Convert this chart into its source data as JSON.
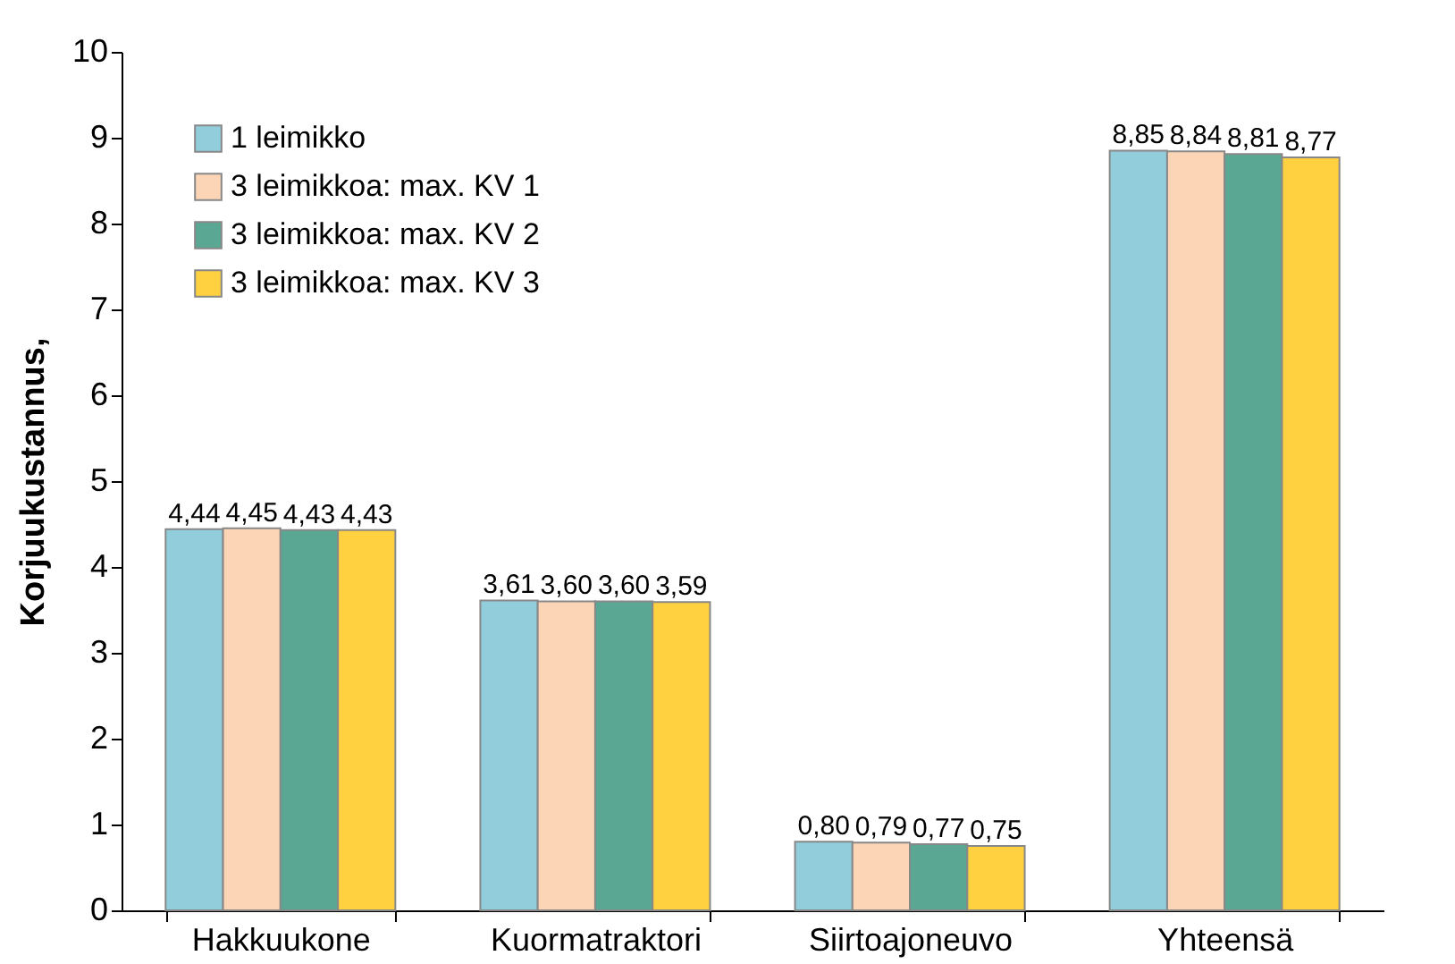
{
  "chart_data": {
    "type": "bar",
    "ylabel": "Korjuukustannus,",
    "categories": [
      "Hakkuukone",
      "Kuormatraktori",
      "Siirtoajoneuvo",
      "Yhteensä"
    ],
    "series": [
      {
        "name": "1 leimikko",
        "color": "#92cddc",
        "values": [
          4.44,
          3.61,
          0.8,
          8.85
        ],
        "value_labels": [
          "4,44",
          "3,61",
          "0,80",
          "8,85"
        ]
      },
      {
        "name": "3 leimikkoa: max. KV 1",
        "color": "#fbd5b5",
        "values": [
          4.45,
          3.6,
          0.79,
          8.84
        ],
        "value_labels": [
          "4,45",
          "3,60",
          "0,79",
          "8,84"
        ]
      },
      {
        "name": "3 leimikkoa: max. KV 2",
        "color": "#5aa894",
        "values": [
          4.43,
          3.6,
          0.77,
          8.81
        ],
        "value_labels": [
          "4,43",
          "3,60",
          "0,77",
          "8,81"
        ]
      },
      {
        "name": "3 leimikkoa: max. KV 3",
        "color": "#ffd140",
        "values": [
          4.43,
          3.59,
          0.75,
          8.77
        ],
        "value_labels": [
          "4,43",
          "3,59",
          "0,75",
          "8,77"
        ]
      }
    ],
    "ylim": [
      0,
      10
    ],
    "yticks": [
      0,
      1,
      2,
      3,
      4,
      5,
      6,
      7,
      8,
      9,
      10
    ],
    "grid": false,
    "legend": "top left"
  }
}
